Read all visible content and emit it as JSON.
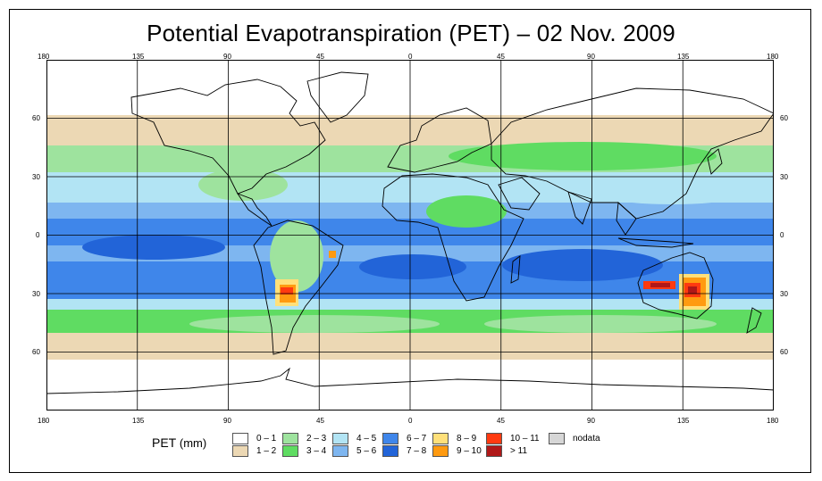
{
  "title": "Potential Evapotranspiration (PET) – 02 Nov. 2009",
  "longitude_ticks": [
    "180",
    "135",
    "90",
    "45",
    "0",
    "45",
    "90",
    "135",
    "180"
  ],
  "latitude_ticks": [
    "60",
    "30",
    "0",
    "30",
    "60"
  ],
  "legend": {
    "title": "PET",
    "unit": "(mm)",
    "items": [
      {
        "label": "0 – 1",
        "color": "#ffffff"
      },
      {
        "label": "1 – 2",
        "color": "#ecd8b4"
      },
      {
        "label": "2 – 3",
        "color": "#9ee39e"
      },
      {
        "label": "3 – 4",
        "color": "#5fdc62"
      },
      {
        "label": "4 – 5",
        "color": "#b2e4f4"
      },
      {
        "label": "5 – 6",
        "color": "#7eb6f0"
      },
      {
        "label": "6 – 7",
        "color": "#3f86ea"
      },
      {
        "label": "7 – 8",
        "color": "#2264d8"
      },
      {
        "label": "8 – 9",
        "color": "#ffe07a"
      },
      {
        "label": "9 – 10",
        "color": "#ff9a10"
      },
      {
        "label": "10 – 11",
        "color": "#ff3a10"
      },
      {
        "label": "> 11",
        "color": "#b01818"
      },
      {
        "label": "nodata",
        "color": "#d6d6d6"
      }
    ]
  }
}
